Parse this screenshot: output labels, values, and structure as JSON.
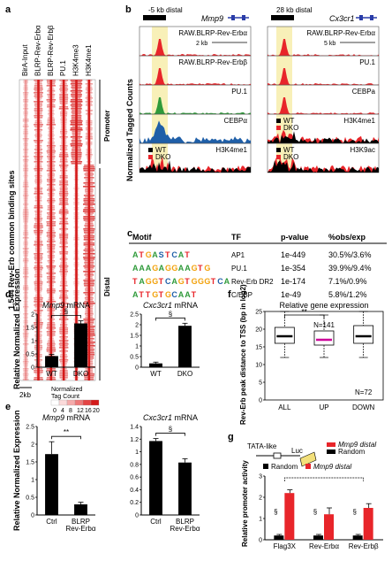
{
  "panels": {
    "a": {
      "label": "a",
      "columns": [
        "BirA-Input",
        "BLRP-Rev-Erbα",
        "BLRP-Rev-Erbβ",
        "PU.1",
        "H3K4me3",
        "H3K4me1"
      ],
      "ylabel": "1,544 Rev-Erb common binding sites",
      "region_promoter": "Promoter",
      "region_distal": "Distal",
      "scale": "2kb",
      "legend_title": "Normalized\nTag Count",
      "legend_ticks": [
        "0",
        "4",
        "8",
        "12",
        "16",
        "20"
      ]
    },
    "b": {
      "label": "b",
      "ylabel": "Normalized Tagged Counts",
      "left": {
        "gene": "Mmp9",
        "dist": "-5 kb distal",
        "scale": "2 kb",
        "tracks": [
          "RAW.BLRP-Rev-Erbα",
          "RAW.BLRP-Rev-Erbβ",
          "PU.1",
          "CEBPα",
          "H3K4me1"
        ]
      },
      "right": {
        "gene": "Cx3cr1",
        "dist": "28 kb distal",
        "scale": "5 kb",
        "tracks": [
          "RAW.BLRP-Rev-Erbα",
          "PU.1",
          "CEBPa",
          "H3K4me1",
          "H3K9ac"
        ]
      },
      "wt": "WT",
      "dko": "DKO"
    },
    "c": {
      "label": "c",
      "headers": [
        "Motif",
        "TF",
        "p-value",
        "%obs/exp"
      ],
      "rows": [
        {
          "motif": "ATGASTCAT",
          "tf": "AP1",
          "p": "1e-449",
          "obs": "30.5%/3.6%"
        },
        {
          "motif": "AAAGAGGAAGTG",
          "tf": "PU.1",
          "p": "1e-354",
          "obs": "39.9%/9.4%"
        },
        {
          "motif": "TAGGTCAGTGGGTCA",
          "tf": "Rev-Erb DR2",
          "p": "1e-174",
          "obs": "7.1%/0.9%"
        },
        {
          "motif": "ATTGTGCAAT",
          "tf": "C/EBP",
          "p": "1e-49",
          "obs": "5.8%/1.2%"
        }
      ]
    },
    "d": {
      "label": "d",
      "ylabel": "Relative Normalized Expression",
      "mark": "§"
    },
    "e": {
      "label": "e",
      "ylabel": "Relative Normalized Expression",
      "mark_l": "**",
      "mark_r": "§"
    },
    "f": {
      "label": "f",
      "title": "Relative gene expression",
      "ylabel": "Rev-Erb peak distance to TSS (bp in log2)",
      "mark": "**",
      "n_up": "N=141",
      "n_down": "N=72"
    },
    "g": {
      "label": "g",
      "ylabel": "Relative promoter activity",
      "tata": "TATA-like",
      "luc": "Luc",
      "distal": "Mmp9 distal",
      "random": "Random",
      "legend_random": "Random",
      "legend_distal": "Mmp9 distal",
      "mark": "§"
    }
  },
  "chart_data": [
    {
      "type": "bar",
      "panel": "d-left",
      "title": "Mmp9 mRNA",
      "categories": [
        "WT",
        "DKO"
      ],
      "values": [
        0.42,
        1.65
      ],
      "errors": [
        0.06,
        0.1
      ],
      "ylim": [
        0,
        2.0
      ],
      "yticks": [
        "0",
        "0.5",
        "1",
        "1.5",
        "2"
      ],
      "colors": [
        "#000000",
        "#000000"
      ]
    },
    {
      "type": "bar",
      "panel": "d-right",
      "title": "Cxc3cr1 mRNA",
      "categories": [
        "WT",
        "DKO"
      ],
      "values": [
        0.18,
        1.95
      ],
      "errors": [
        0.06,
        0.12
      ],
      "ylim": [
        0,
        2.5
      ],
      "yticks": [
        "0",
        "0.5",
        "1",
        "1.5",
        "2",
        "2.5"
      ],
      "colors": [
        "#000000",
        "#000000"
      ]
    },
    {
      "type": "bar",
      "panel": "e-left",
      "title": "Mmp9 mRNA",
      "categories": [
        "Ctrl",
        "BLRP Rev-Erbα"
      ],
      "values": [
        1.72,
        0.3
      ],
      "errors": [
        0.35,
        0.06
      ],
      "ylim": [
        0,
        2.5
      ],
      "yticks": [
        "0",
        "0.5",
        "1",
        "1.5",
        "2",
        "2.5"
      ],
      "colors": [
        "#000000",
        "#000000"
      ]
    },
    {
      "type": "bar",
      "panel": "e-right",
      "title": "Cxc3cr1 mRNA",
      "categories": [
        "Ctrl",
        "BLRP Rev-Erbα"
      ],
      "values": [
        1.17,
        0.83
      ],
      "errors": [
        0.04,
        0.06
      ],
      "ylim": [
        0,
        1.4
      ],
      "yticks": [
        "0",
        "0.2",
        "0.4",
        "0.6",
        "0.8",
        "1",
        "1.2",
        "1.4"
      ],
      "colors": [
        "#000000",
        "#000000"
      ]
    },
    {
      "type": "box",
      "panel": "f",
      "categories": [
        "ALL",
        "UP",
        "DOWN"
      ],
      "ylim": [
        0,
        25
      ],
      "yticks": [
        "0",
        "5",
        "10",
        "15",
        "20",
        "25"
      ],
      "boxes": [
        {
          "min": 12,
          "q1": 16,
          "median": 18,
          "q3": 20.5,
          "max": 25
        },
        {
          "min": 12,
          "q1": 15.5,
          "median": 17,
          "q3": 19.5,
          "max": 24
        },
        {
          "min": 12,
          "q1": 16,
          "median": 18,
          "q3": 21,
          "max": 25
        }
      ],
      "median_colors": [
        "#000000",
        "#cc0099",
        "#000000"
      ]
    },
    {
      "type": "bar",
      "panel": "g",
      "categories": [
        "Flag3X",
        "Rev-Erbα",
        "Rev-Erbβ"
      ],
      "series": [
        {
          "name": "Random",
          "values": [
            0.2,
            0.2,
            0.2
          ],
          "color": "#000000"
        },
        {
          "name": "Mmp9 distal",
          "values": [
            2.2,
            1.2,
            1.5
          ],
          "color": "#e8252a"
        }
      ],
      "errors": [
        [
          0.05,
          0.05,
          0.05
        ],
        [
          0.15,
          0.3,
          0.2
        ]
      ],
      "ylim": [
        0,
        3
      ],
      "yticks": [
        "0",
        "1",
        "2",
        "3"
      ]
    }
  ]
}
